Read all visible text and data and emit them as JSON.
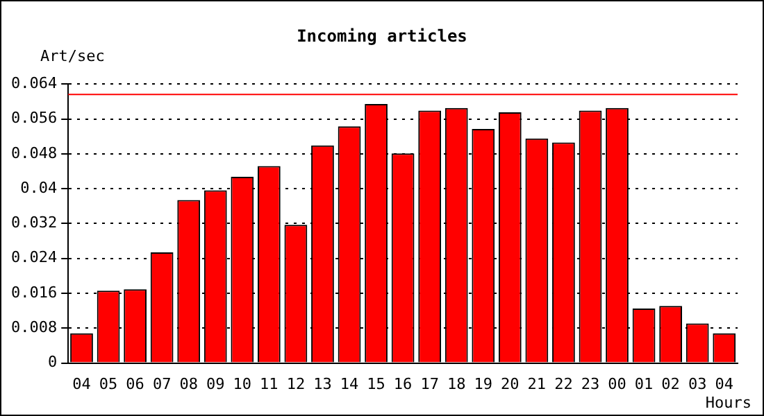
{
  "chart_data": {
    "type": "bar",
    "title": "Incoming articles",
    "xlabel": "Hours",
    "ylabel": "Art/sec",
    "categories": [
      "04",
      "05",
      "06",
      "07",
      "08",
      "09",
      "10",
      "11",
      "12",
      "13",
      "14",
      "15",
      "16",
      "17",
      "18",
      "19",
      "20",
      "21",
      "22",
      "23",
      "00",
      "01",
      "02",
      "03",
      "04"
    ],
    "values": [
      0.0068,
      0.0166,
      0.0169,
      0.0254,
      0.0374,
      0.0396,
      0.0427,
      0.0452,
      0.0317,
      0.0499,
      0.0543,
      0.0594,
      0.0481,
      0.0579,
      0.0585,
      0.0537,
      0.0575,
      0.0515,
      0.0506,
      0.0579,
      0.0585,
      0.0125,
      0.0131,
      0.0091,
      0.0068
    ],
    "color": "#ff0000",
    "ylim": [
      0,
      0.064
    ],
    "yticks": [
      0,
      0.008,
      0.016,
      0.024,
      0.032,
      0.04,
      0.048,
      0.056,
      0.064
    ],
    "grid": "y",
    "line_style": "dotted",
    "legend": false,
    "ref_lines": [
      {
        "axis": "y",
        "value": 0.0616,
        "color": "#ff0000"
      }
    ]
  }
}
